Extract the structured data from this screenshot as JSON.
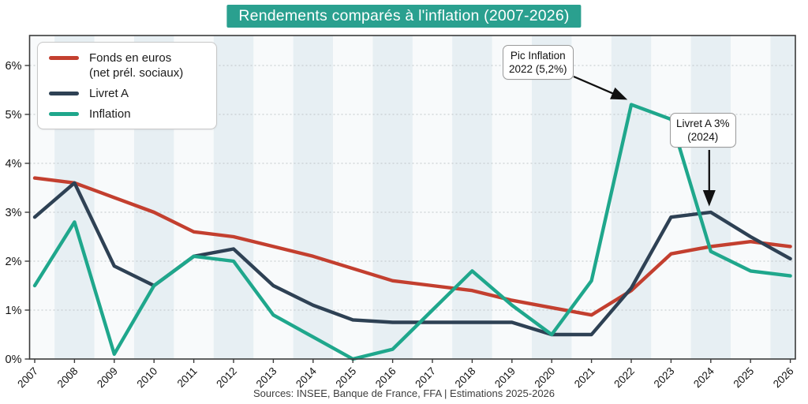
{
  "chart": {
    "title": "Rendements comparés à l'inflation (2007-2026)",
    "source": "Sources: INSEE, Banque de France, FFA | Estimations 2025-2026",
    "legend": [
      {
        "label": "Fonds en euros\n(net prél. sociaux)",
        "color": "#c33f2f"
      },
      {
        "label": "Livret A",
        "color": "#2e4154"
      },
      {
        "label": "Inflation",
        "color": "#1fa78c"
      }
    ],
    "annotations": [
      {
        "text": "Pic Inflation\n2022 (5,2%)",
        "target": "inflation-peak-2022"
      },
      {
        "text": "Livret A 3%\n(2024)",
        "target": "livret-a-2024"
      }
    ],
    "colors": {
      "title_bg": "#2aa08f",
      "plot_bg": "#f8fafb",
      "year_band": "#e7eff3",
      "grid": "#bfc5c8",
      "frame": "#3b3b3b",
      "arrow": "#111111",
      "tick_text": "#111111"
    }
  },
  "chart_data": {
    "type": "line",
    "x": [
      2007,
      2008,
      2009,
      2010,
      2011,
      2012,
      2013,
      2014,
      2015,
      2016,
      2017,
      2018,
      2019,
      2020,
      2021,
      2022,
      2023,
      2024,
      2025,
      2026
    ],
    "series": [
      {
        "name": "Fonds en euros (net prél. sociaux)",
        "color": "#c33f2f",
        "values": [
          3.7,
          3.6,
          3.3,
          3.0,
          2.6,
          2.5,
          2.3,
          2.1,
          1.85,
          1.6,
          1.5,
          1.4,
          1.2,
          1.05,
          0.9,
          1.4,
          2.15,
          2.3,
          2.4,
          2.3
        ]
      },
      {
        "name": "Livret A",
        "color": "#2e4154",
        "values": [
          2.9,
          3.6,
          1.9,
          1.5,
          2.1,
          2.25,
          1.5,
          1.1,
          0.8,
          0.75,
          0.75,
          0.75,
          0.75,
          0.5,
          0.5,
          1.45,
          2.9,
          3.0,
          2.5,
          2.05
        ]
      },
      {
        "name": "Inflation",
        "color": "#1fa78c",
        "values": [
          1.5,
          2.8,
          0.1,
          1.5,
          2.1,
          2.0,
          0.9,
          0.45,
          0.0,
          0.2,
          1.0,
          1.8,
          1.1,
          0.5,
          1.6,
          5.2,
          4.9,
          2.2,
          1.8,
          1.7
        ]
      }
    ],
    "title": "Rendements comparés à l'inflation (2007-2026)",
    "xlabel": "",
    "ylabel": "",
    "ylim": [
      0,
      6.6
    ],
    "yticks": [
      0,
      1,
      2,
      3,
      4,
      5,
      6
    ],
    "ytick_labels": [
      "0%",
      "1%",
      "2%",
      "3%",
      "4%",
      "5%",
      "6%"
    ],
    "grid": "horizontal-dotted",
    "background_bands": "even-years-shaded",
    "legend_position": "top-left",
    "annotations": [
      {
        "text": "Pic Inflation 2022 (5,2%)",
        "x": 2022,
        "y": 5.2
      },
      {
        "text": "Livret A 3% (2024)",
        "x": 2024,
        "y": 3.0
      }
    ]
  }
}
